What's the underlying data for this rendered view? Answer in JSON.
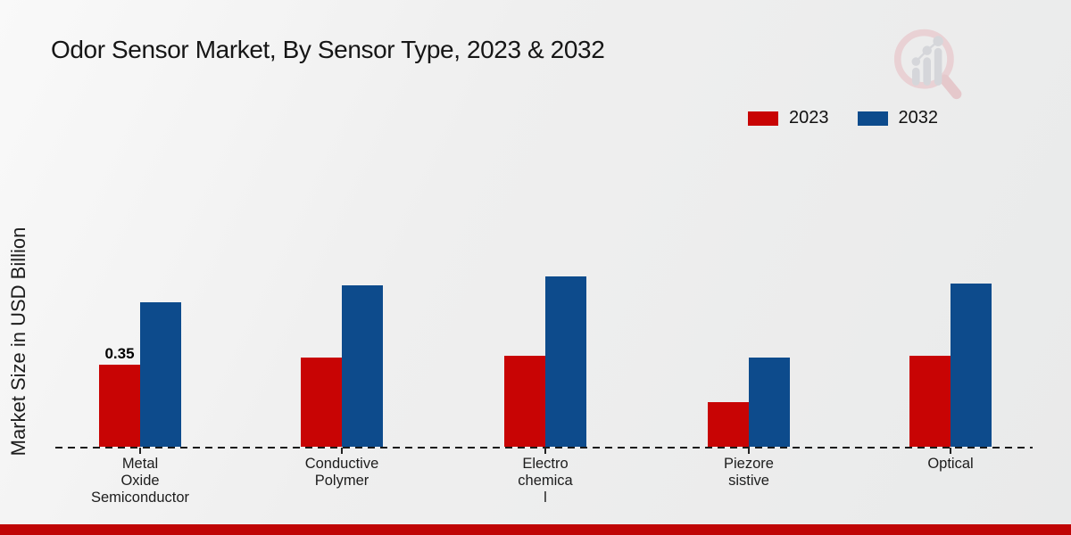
{
  "page": {
    "title": "Odor Sensor Market, By Sensor Type, 2023 & 2032",
    "y_axis_label": "Market Size in USD Billion",
    "brand_logo_icon": "magnifier-growth-chart-icon",
    "footer_bar_color": "#c00505",
    "background_color": "#ededed"
  },
  "legend": [
    {
      "label": "2023",
      "color": "#c80404"
    },
    {
      "label": "2032",
      "color": "#0d4b8c"
    }
  ],
  "chart_data": {
    "type": "bar",
    "title": "Odor Sensor Market, By Sensor Type, 2023 & 2032",
    "xlabel": "",
    "ylabel": "Market Size in USD Billion",
    "units": "USD Billion",
    "categories": [
      "Metal Oxide Semiconductor",
      "Conductive Polymer",
      "Electrochemical",
      "Piezoresistive",
      "Optical"
    ],
    "category_display": [
      [
        "Metal",
        "Oxide",
        "Semiconductor"
      ],
      [
        "Conductive",
        "Polymer"
      ],
      [
        "Electro",
        "chemica",
        "l"
      ],
      [
        "Piezore",
        "sistive"
      ],
      [
        "Optical"
      ]
    ],
    "series": [
      {
        "name": "2023",
        "color": "#c80404",
        "values": [
          0.35,
          0.38,
          0.39,
          0.19,
          0.39
        ]
      },
      {
        "name": "2032",
        "color": "#0d4b8c",
        "values": [
          0.62,
          0.69,
          0.73,
          0.38,
          0.7
        ]
      }
    ],
    "annotations": [
      {
        "category_index": 0,
        "series_index": 0,
        "text": "0.35"
      }
    ],
    "ylim": [
      0,
      1.2
    ],
    "grid": false,
    "legend_position": "top-right",
    "baseline_style": "dashed"
  }
}
